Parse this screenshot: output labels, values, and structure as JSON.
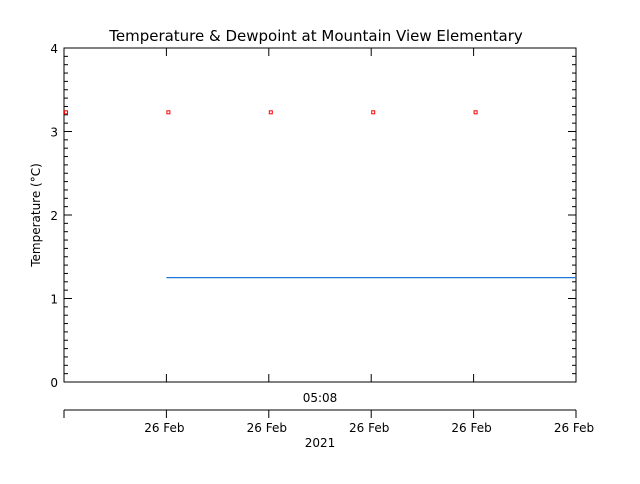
{
  "chart_data": {
    "type": "line",
    "title": "Temperature & Dewpoint at Mountain View Elementary",
    "ylabel": "Temperature (°C)",
    "ylim": [
      0,
      4
    ],
    "y_major_ticks": [
      0,
      1,
      2,
      3,
      4
    ],
    "x_time_label": "05:08",
    "x_tick_labels": [
      "26 Feb",
      "26 Feb",
      "26 Feb",
      "26 Feb",
      "26 Feb"
    ],
    "x_year_label": "2021",
    "grid": false,
    "legend": "none",
    "series": [
      {
        "style": "markers",
        "color": "#ff0000",
        "x": [
          0,
          1,
          2,
          3,
          4
        ],
        "values": [
          3.23,
          3.23,
          3.23,
          3.23,
          3.23
        ]
      },
      {
        "style": "line",
        "color": "#1f77d4",
        "x": [
          1,
          5
        ],
        "values": [
          1.25,
          1.25
        ]
      }
    ]
  }
}
